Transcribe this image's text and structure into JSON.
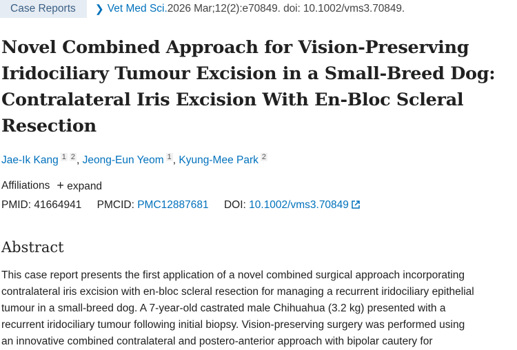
{
  "header": {
    "article_type": "Case Reports",
    "journal": "Vet Med Sci.",
    "citation": " 2026 Mar;12(2):e70849. doi: 10.1002/vms3.70849."
  },
  "title_lines": [
    "Novel Combined Approach for Vision-Preserving",
    "Iridociliary Tumour Excision in a Small-Breed Dog:",
    "Contralateral Iris Excision With En-Bloc Scleral",
    "Resection"
  ],
  "authors": [
    {
      "name": "Jae-Ik Kang",
      "aff": [
        "1",
        "2"
      ]
    },
    {
      "name": "Jeong-Eun Yeom",
      "aff": [
        "1"
      ]
    },
    {
      "name": "Kyung-Mee Park",
      "aff": [
        "2"
      ]
    }
  ],
  "affiliations": {
    "label": "Affiliations",
    "expand": "expand"
  },
  "ids": {
    "pmid_label": "PMID:",
    "pmid": "41664941",
    "pmcid_label": "PMCID:",
    "pmcid": "PMC12887681",
    "doi_label": "DOI:",
    "doi": "10.1002/vms3.70849"
  },
  "abstract": {
    "heading": "Abstract",
    "lines": [
      "This case report presents the first application of a novel combined surgical approach incorporating",
      "contralateral iris excision with en-bloc scleral resection for managing a recurrent iridociliary epithelial",
      "tumour in a small-breed dog. A 7-year-old castrated male Chihuahua (3.2 kg) presented with a",
      "recurrent iridociliary tumour following initial biopsy. Vision-preserving surgery was performed using",
      "an innovative combined contralateral and postero-anterior approach with bipolar cautery for"
    ]
  },
  "colors": {
    "link": "#0071bc",
    "badge_bg": "#e6ecf3"
  }
}
